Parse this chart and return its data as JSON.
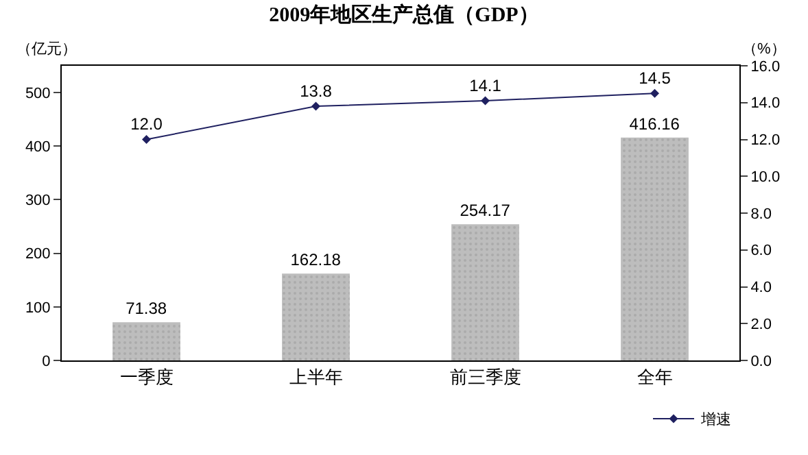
{
  "chart_data": {
    "type": "bar",
    "title": "2009年地区生产总值（GDP）",
    "ylabel": "（亿元）",
    "y2label": "（%）",
    "categories": [
      "一季度",
      "上半年",
      "前三季度",
      "全年"
    ],
    "series": [
      {
        "color": "#bdbdbd",
        "values": [
          71.38,
          162.18,
          254.17,
          416.16
        ]
      },
      {
        "type": "line",
        "name": "增速",
        "axis": "y2",
        "color": "#1f2060",
        "values": [
          12.0,
          13.8,
          14.1,
          14.5
        ],
        "value_labels": [
          "12.0",
          "13.8",
          "14.1",
          "14.5"
        ]
      }
    ],
    "ylim": [
      0,
      550
    ],
    "yticks": [
      0,
      100,
      200,
      300,
      400,
      500
    ],
    "y2lim": [
      0,
      16
    ],
    "y2ticks": [
      {
        "value": 0,
        "label": "0.0"
      },
      {
        "value": 2,
        "label": "2.0"
      },
      {
        "value": 4,
        "label": "4.0"
      },
      {
        "value": 6,
        "label": "6.0"
      },
      {
        "value": 8,
        "label": "8.0"
      },
      {
        "value": 10,
        "label": "10.0"
      },
      {
        "value": 12,
        "label": "12.0"
      },
      {
        "value": 14,
        "label": "14.0"
      },
      {
        "value": 16,
        "label": "16.0"
      }
    ],
    "data_labels": true,
    "marker": "diamond",
    "line_style": "solid",
    "legend": "bottom right"
  }
}
